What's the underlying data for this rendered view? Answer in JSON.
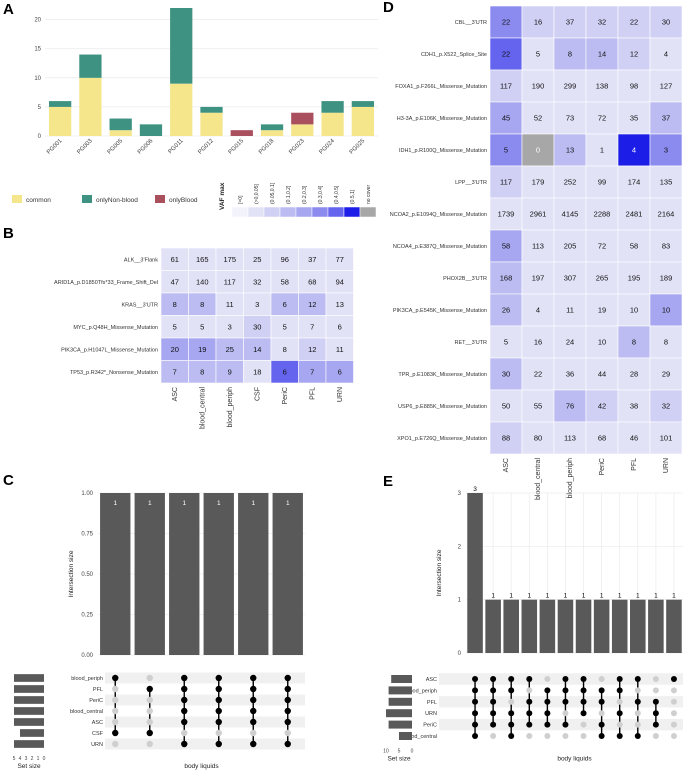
{
  "panels": {
    "a": "A",
    "b": "B",
    "c": "C",
    "d": "D",
    "e": "E"
  },
  "colors": {
    "common": "#f5e68c",
    "onlyNonBlood": "#3e9281",
    "onlyBlood": "#a94f5d",
    "grid": "#ebebeb",
    "bar": "#595959",
    "dot_on": "#000000",
    "dot_off": "#cfcfcf",
    "stripe": "#f0f0f0"
  },
  "legendA": {
    "items": [
      "common",
      "onlyNon-blood",
      "onlyBlood"
    ]
  },
  "vafLegend": {
    "title": "VAF max",
    "labels": [
      "[=0]",
      "(>0,0.05]",
      "(0.05,0.1]",
      "(0.1,0.2]",
      "(0.2,0.3]",
      "(0.3,0.4]",
      "(0.4,0.5]",
      "(0.5,1]",
      "no cover"
    ],
    "colors": [
      "#f3f3fb",
      "#e2e2f7",
      "#d0d0f4",
      "#bcbcf3",
      "#a6a6f1",
      "#8a8aef",
      "#6464ee",
      "#1d1de8",
      "#a7a7a7"
    ]
  },
  "chart_data": [
    {
      "type": "bar",
      "panel": "A",
      "stacked": true,
      "categories": [
        "PG001",
        "PG003",
        "PG005",
        "PG006",
        "PG011",
        "PG012",
        "PG015",
        "PG018",
        "PG023",
        "PG024",
        "PG025"
      ],
      "series": [
        {
          "name": "common",
          "values": [
            5,
            10,
            1,
            0,
            9,
            4,
            0,
            1,
            2,
            4,
            5
          ]
        },
        {
          "name": "onlyNon-blood",
          "values": [
            1,
            4,
            2,
            2,
            13,
            1,
            0,
            1,
            0,
            2,
            1
          ]
        },
        {
          "name": "onlyBlood",
          "values": [
            0,
            0,
            0,
            0,
            0,
            0,
            1,
            0,
            2,
            0,
            0
          ]
        }
      ],
      "ylim": [
        0,
        22
      ],
      "yticks": [
        0,
        5,
        10,
        15,
        20
      ]
    },
    {
      "type": "heatmap",
      "panel": "B",
      "rows": [
        "ALK__3'Flank",
        "ARID1A_p.D1850Tfs*33_Frame_Shift_Del",
        "KRAS__3'UTR",
        "MYC_p.Q48H_Missense_Mutation",
        "PIK3CA_p.H1047L_Missense_Mutation",
        "TP53_p.R342*_Nonsense_Mutation"
      ],
      "cols": [
        "ASC",
        "blood_central",
        "blood_periph",
        "CSF",
        "PeriC",
        "PFL",
        "URN"
      ],
      "values": [
        [
          61,
          165,
          175,
          25,
          96,
          37,
          77
        ],
        [
          47,
          140,
          117,
          32,
          58,
          68,
          94
        ],
        [
          8,
          8,
          11,
          3,
          6,
          12,
          13
        ],
        [
          5,
          5,
          3,
          30,
          5,
          7,
          6
        ],
        [
          20,
          19,
          25,
          14,
          8,
          12,
          11
        ],
        [
          7,
          8,
          9,
          18,
          6,
          7,
          6
        ]
      ],
      "levels": [
        [
          1,
          1,
          1,
          1,
          1,
          1,
          1
        ],
        [
          1,
          1,
          1,
          1,
          1,
          1,
          1
        ],
        [
          3,
          3,
          1,
          1,
          3,
          3,
          1
        ],
        [
          1,
          1,
          1,
          2,
          1,
          1,
          1
        ],
        [
          4,
          4,
          3,
          3,
          1,
          2,
          1
        ],
        [
          3,
          3,
          3,
          1,
          6,
          4,
          4
        ]
      ]
    },
    {
      "type": "heatmap",
      "panel": "D",
      "rows": [
        "CBL__3'UTR",
        "CDH1_p.X522_Splice_Site",
        "FOXA1_p.F266L_Missense_Mutation",
        "H3-3A_p.E106K_Missense_Mutation",
        "IDH1_p.R100Q_Missense_Mutation",
        "LPP__3'UTR",
        "NCOA2_p.E1094Q_Missense_Mutation",
        "NCOA4_p.E387Q_Missense_Mutation",
        "PHOX2B__3'UTR",
        "PIK3CA_p.E545K_Missense_Mutation",
        "RET__3'UTR",
        "TPR_p.E1083K_Missense_Mutation",
        "USP6_p.E885K_Missense_Mutation",
        "XPO1_p.E726Q_Missense_Mutation"
      ],
      "cols": [
        "ASC",
        "blood_central",
        "blood_periph",
        "PeriC",
        "PFL",
        "URN"
      ],
      "values": [
        [
          22,
          16,
          37,
          32,
          22,
          30
        ],
        [
          22,
          5,
          8,
          14,
          12,
          4
        ],
        [
          117,
          190,
          299,
          138,
          98,
          127
        ],
        [
          45,
          52,
          73,
          72,
          35,
          37
        ],
        [
          5,
          0,
          13,
          1,
          4,
          3
        ],
        [
          117,
          179,
          252,
          99,
          174,
          135
        ],
        [
          1739,
          2961,
          4145,
          2288,
          2481,
          2164
        ],
        [
          58,
          113,
          205,
          72,
          58,
          83
        ],
        [
          168,
          197,
          307,
          265,
          195,
          189
        ],
        [
          26,
          4,
          11,
          19,
          10,
          10
        ],
        [
          5,
          16,
          24,
          10,
          8,
          8
        ],
        [
          30,
          22,
          36,
          44,
          28,
          29
        ],
        [
          50,
          55,
          76,
          42,
          38,
          32
        ],
        [
          88,
          80,
          113,
          68,
          46,
          101
        ]
      ],
      "levels": [
        [
          5,
          2,
          2,
          2,
          2,
          2
        ],
        [
          6,
          1,
          3,
          3,
          2,
          1
        ],
        [
          2,
          1,
          1,
          1,
          1,
          1
        ],
        [
          4,
          1,
          1,
          1,
          1,
          3
        ],
        [
          5,
          8,
          3,
          1,
          7,
          5
        ],
        [
          2,
          1,
          1,
          1,
          1,
          1
        ],
        [
          1,
          1,
          1,
          1,
          1,
          1
        ],
        [
          4,
          1,
          1,
          1,
          1,
          1
        ],
        [
          3,
          1,
          1,
          1,
          1,
          1
        ],
        [
          3,
          1,
          1,
          1,
          1,
          4
        ],
        [
          1,
          1,
          1,
          1,
          3,
          1
        ],
        [
          3,
          1,
          1,
          1,
          1,
          1
        ],
        [
          1,
          1,
          3,
          2,
          1,
          2
        ],
        [
          2,
          1,
          1,
          1,
          1,
          1
        ]
      ]
    },
    {
      "type": "upset",
      "panel": "C",
      "ylabel": "Intersection size",
      "xlabel": "body liquids",
      "setsize_label": "Set size",
      "ymax": 1.0,
      "yticks": [
        "0.00",
        "0.25",
        "0.50",
        "0.75",
        "1.00"
      ],
      "sets": [
        "blood_periph",
        "PFL",
        "PeriC",
        "blood_central",
        "ASC",
        "CSF",
        "URN"
      ],
      "set_sizes": [
        5,
        5,
        5,
        5,
        5,
        4,
        5
      ],
      "setsize_ticks": [
        "5",
        "4",
        "3",
        "2",
        "1",
        "0"
      ],
      "bars": [
        1,
        1,
        1,
        1,
        1,
        1
      ],
      "bar_labels": [
        "1",
        "1",
        "1",
        "1",
        "1",
        "1"
      ],
      "matrix": [
        [
          1,
          0,
          0,
          0,
          0,
          1,
          0
        ],
        [
          0,
          1,
          0,
          0,
          0,
          1,
          0
        ],
        [
          1,
          1,
          1,
          1,
          1,
          0,
          1
        ],
        [
          1,
          1,
          1,
          1,
          1,
          0,
          1
        ],
        [
          1,
          1,
          1,
          1,
          1,
          0,
          1
        ],
        [
          1,
          1,
          1,
          1,
          1,
          0,
          1
        ]
      ]
    },
    {
      "type": "upset",
      "panel": "E",
      "ylabel": "Intersection size",
      "xlabel": "body liquids",
      "setsize_label": "Set size",
      "ymax": 3,
      "yticks": [
        "0",
        "1",
        "2",
        "3"
      ],
      "sets": [
        "ASC",
        "blood_periph",
        "PFL",
        "URN",
        "PeriC",
        "blood_central"
      ],
      "set_sizes": [
        8,
        9,
        9,
        10,
        9,
        5
      ],
      "setsize_ticks": [
        "10",
        "5",
        "0"
      ],
      "bars": [
        3,
        1,
        1,
        1,
        1,
        1,
        1,
        1,
        1,
        1,
        1,
        1
      ],
      "bar_labels": [
        "3",
        "1",
        "1",
        "1",
        "1",
        "1",
        "1",
        "1",
        "1",
        "1",
        "1",
        "1"
      ],
      "matrix": [
        [
          1,
          1,
          1,
          1,
          1,
          1
        ],
        [
          1,
          1,
          1,
          1,
          1,
          0
        ],
        [
          1,
          1,
          0,
          1,
          1,
          1
        ],
        [
          1,
          0,
          1,
          1,
          1,
          0
        ],
        [
          0,
          1,
          1,
          1,
          1,
          0
        ],
        [
          1,
          1,
          1,
          0,
          1,
          0
        ],
        [
          1,
          1,
          1,
          1,
          0,
          0
        ],
        [
          0,
          1,
          1,
          0,
          1,
          1
        ],
        [
          1,
          1,
          0,
          1,
          0,
          1
        ],
        [
          1,
          0,
          1,
          0,
          0,
          1
        ],
        [
          0,
          0,
          1,
          1,
          1,
          0
        ],
        [
          1,
          0,
          0,
          0,
          0,
          0
        ]
      ]
    }
  ]
}
